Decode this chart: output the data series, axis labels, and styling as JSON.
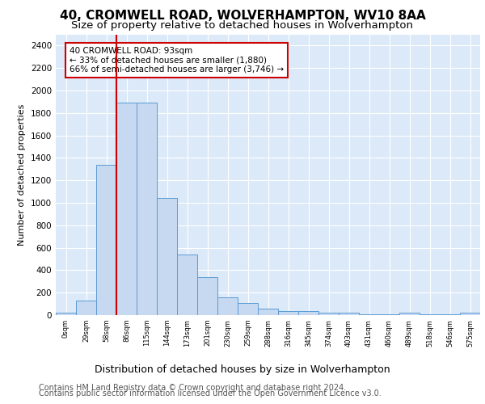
{
  "title1": "40, CROMWELL ROAD, WOLVERHAMPTON, WV10 8AA",
  "title2": "Size of property relative to detached houses in Wolverhampton",
  "xlabel": "Distribution of detached houses by size in Wolverhampton",
  "ylabel": "Number of detached properties",
  "footer1": "Contains HM Land Registry data © Crown copyright and database right 2024.",
  "footer2": "Contains public sector information licensed under the Open Government Licence v3.0.",
  "bin_labels": [
    "0sqm",
    "29sqm",
    "58sqm",
    "86sqm",
    "115sqm",
    "144sqm",
    "173sqm",
    "201sqm",
    "230sqm",
    "259sqm",
    "288sqm",
    "316sqm",
    "345sqm",
    "374sqm",
    "403sqm",
    "431sqm",
    "460sqm",
    "489sqm",
    "518sqm",
    "546sqm",
    "575sqm"
  ],
  "bar_values": [
    20,
    130,
    1340,
    1890,
    1890,
    1040,
    540,
    340,
    160,
    110,
    55,
    35,
    35,
    20,
    20,
    10,
    10,
    20,
    10,
    10,
    20
  ],
  "bar_color": "#c6d9f0",
  "bar_edge_color": "#5b9bd5",
  "vline_color": "#cc0000",
  "vline_x_index": 3,
  "annotation_text": "40 CROMWELL ROAD: 93sqm\n← 33% of detached houses are smaller (1,880)\n66% of semi-detached houses are larger (3,746) →",
  "annotation_box_color": "#ffffff",
  "annotation_box_edge": "#cc0000",
  "ylim": [
    0,
    2500
  ],
  "yticks": [
    0,
    200,
    400,
    600,
    800,
    1000,
    1200,
    1400,
    1600,
    1800,
    2000,
    2200,
    2400
  ],
  "background_color": "#dce9f8",
  "grid_color": "#ffffff",
  "title1_fontsize": 11,
  "title2_fontsize": 9.5,
  "xlabel_fontsize": 9,
  "ylabel_fontsize": 8,
  "footer_fontsize": 7
}
